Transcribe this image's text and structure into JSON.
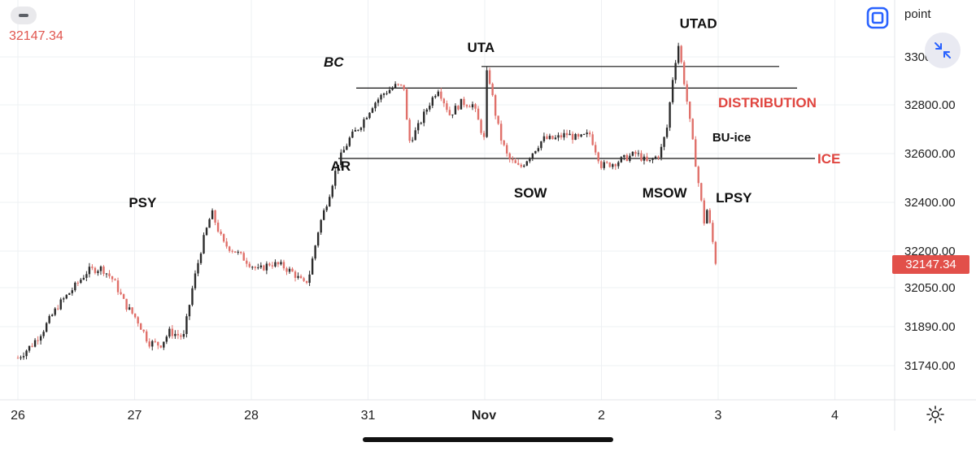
{
  "header": {
    "current_price_text": "32147.34",
    "unit_label": "point",
    "fullscreen_icon": "fullscreen-icon",
    "collapse_icon": "collapse-arrows-icon",
    "settings_icon": "gear-icon"
  },
  "price_tag": "32147.34",
  "colors": {
    "up": "#2b2b2b",
    "down": "#e0706a",
    "accent_red": "#e0453f",
    "blue": "#2962ff"
  },
  "chart_data": {
    "type": "candlestick",
    "x_ticks": [
      "26",
      "27",
      "28",
      "31",
      "Nov",
      "2",
      "3",
      "4"
    ],
    "y_ticks": [
      "3300",
      "32800.00",
      "32600.00",
      "32400.00",
      "32200.00",
      "32050.00",
      "31890.00",
      "31740.00"
    ],
    "ylim": [
      31650,
      33100
    ],
    "grid": true,
    "last_price": 32147.34,
    "series": [
      {
        "values": [
          [
            0.0,
            31770
          ],
          [
            0.12,
            31820
          ],
          [
            0.22,
            31880
          ],
          [
            0.35,
            31980
          ],
          [
            0.48,
            32050
          ],
          [
            0.6,
            32120
          ],
          [
            0.72,
            32130
          ],
          [
            0.82,
            32080
          ],
          [
            0.92,
            31980
          ],
          [
            1.02,
            31920
          ],
          [
            1.12,
            31830
          ],
          [
            1.22,
            31820
          ],
          [
            1.3,
            31870
          ],
          [
            1.42,
            31850
          ],
          [
            1.5,
            32060
          ],
          [
            1.58,
            32230
          ],
          [
            1.66,
            32360
          ],
          [
            1.76,
            32230
          ],
          [
            1.86,
            32200
          ],
          [
            1.96,
            32160
          ],
          [
            2.06,
            32120
          ],
          [
            2.16,
            32150
          ],
          [
            2.26,
            32140
          ],
          [
            2.36,
            32110
          ],
          [
            2.46,
            32060
          ],
          [
            2.5,
            32110
          ],
          [
            2.58,
            32300
          ],
          [
            2.66,
            32420
          ],
          [
            2.74,
            32560
          ],
          [
            2.84,
            32660
          ],
          [
            2.94,
            32720
          ],
          [
            3.04,
            32800
          ],
          [
            3.14,
            32850
          ],
          [
            3.24,
            32880
          ],
          [
            3.32,
            32870
          ],
          [
            3.34,
            32640
          ],
          [
            3.42,
            32700
          ],
          [
            3.52,
            32800
          ],
          [
            3.6,
            32870
          ],
          [
            3.7,
            32760
          ],
          [
            3.8,
            32810
          ],
          [
            3.9,
            32800
          ],
          [
            4.0,
            32650
          ],
          [
            4.02,
            32960
          ],
          [
            4.06,
            32850
          ],
          [
            4.1,
            32740
          ],
          [
            4.14,
            32660
          ],
          [
            4.2,
            32580
          ],
          [
            4.3,
            32540
          ],
          [
            4.4,
            32600
          ],
          [
            4.5,
            32660
          ],
          [
            4.6,
            32660
          ],
          [
            4.7,
            32680
          ],
          [
            4.8,
            32660
          ],
          [
            4.9,
            32680
          ],
          [
            5.0,
            32550
          ],
          [
            5.1,
            32560
          ],
          [
            5.2,
            32580
          ],
          [
            5.3,
            32600
          ],
          [
            5.4,
            32560
          ],
          [
            5.5,
            32600
          ],
          [
            5.56,
            32700
          ],
          [
            5.62,
            32950
          ],
          [
            5.66,
            33050
          ],
          [
            5.72,
            32860
          ],
          [
            5.78,
            32650
          ],
          [
            5.84,
            32450
          ],
          [
            5.88,
            32320
          ],
          [
            5.9,
            32380
          ],
          [
            5.94,
            32280
          ],
          [
            5.98,
            32150
          ]
        ]
      }
    ],
    "levels": [
      {
        "label": "BC",
        "y": 32870
      },
      {
        "label": "UTA",
        "y": 32960
      },
      {
        "label": "ICE",
        "y": 32580
      }
    ],
    "annotations": [
      {
        "text": "PSY",
        "x": 0.95,
        "y": 32380
      },
      {
        "text": "BC",
        "x": 2.62,
        "y": 32960
      },
      {
        "text": "AR",
        "x": 2.68,
        "y": 32530
      },
      {
        "text": "UTA",
        "x": 3.85,
        "y": 33020
      },
      {
        "text": "SOW",
        "x": 4.25,
        "y": 32420
      },
      {
        "text": "MSOW",
        "x": 5.35,
        "y": 32420
      },
      {
        "text": "UTAD",
        "x": 5.67,
        "y": 33120
      },
      {
        "text": "DISTRIBUTION",
        "x": 6.0,
        "y": 32790
      },
      {
        "text": "BU-ice",
        "x": 5.95,
        "y": 32650
      },
      {
        "text": "ICE",
        "x": 6.85,
        "y": 32560
      },
      {
        "text": "LPSY",
        "x": 5.98,
        "y": 32400
      }
    ]
  }
}
